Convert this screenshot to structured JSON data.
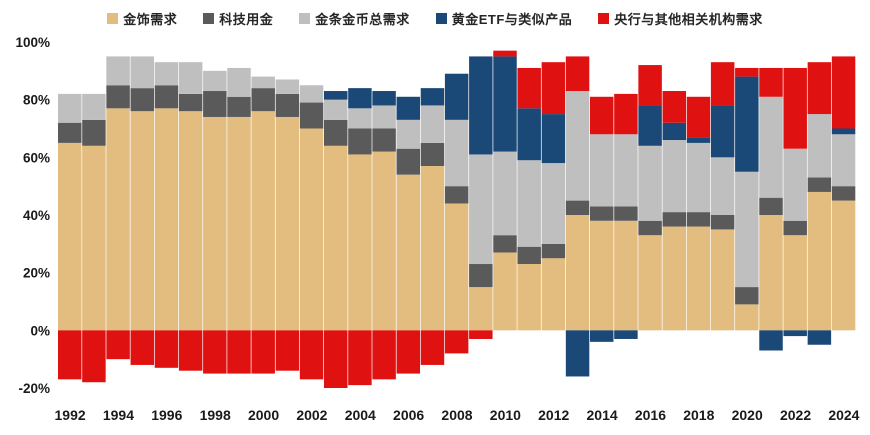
{
  "chart_data": {
    "type": "bar",
    "stacked": true,
    "unit": "%",
    "title": "",
    "xlabel": "",
    "ylabel": "",
    "ylim": [
      -20,
      100
    ],
    "grid": false,
    "legend_position": "top",
    "x_tick_step": 2,
    "x": [
      1992,
      1993,
      1994,
      1995,
      1996,
      1997,
      1998,
      1999,
      2000,
      2001,
      2002,
      2003,
      2004,
      2005,
      2006,
      2007,
      2008,
      2009,
      2010,
      2011,
      2012,
      2013,
      2014,
      2015,
      2016,
      2017,
      2018,
      2019,
      2020,
      2021,
      2022,
      2023,
      2024
    ],
    "y_ticks": [
      {
        "value": 100,
        "label": "100%"
      },
      {
        "value": 80,
        "label": "80%"
      },
      {
        "value": 60,
        "label": "60%"
      },
      {
        "value": 40,
        "label": "40%"
      },
      {
        "value": 20,
        "label": "20%"
      },
      {
        "value": 0,
        "label": "0%"
      },
      {
        "value": -20,
        "label": "-20%"
      }
    ],
    "series": [
      {
        "key": "jewelry",
        "name": "金饰需求",
        "color": "#e3bd7f",
        "values": [
          65,
          64,
          77,
          76,
          77,
          76,
          74,
          74,
          76,
          74,
          70,
          64,
          61,
          62,
          54,
          57,
          44,
          15,
          27,
          23,
          25,
          40,
          38,
          38,
          33,
          36,
          36,
          35,
          9,
          40,
          33,
          48,
          45
        ]
      },
      {
        "key": "technology",
        "name": "科技用金",
        "color": "#5a5a5a",
        "values": [
          7,
          9,
          8,
          8,
          8,
          6,
          9,
          7,
          8,
          8,
          9,
          9,
          9,
          8,
          9,
          8,
          6,
          8,
          6,
          6,
          5,
          5,
          5,
          5,
          5,
          5,
          5,
          5,
          6,
          6,
          5,
          5,
          5
        ]
      },
      {
        "key": "bar-coin",
        "name": "金条金币总需求",
        "color": "#c0bfbf",
        "values": [
          10,
          9,
          10,
          11,
          8,
          11,
          7,
          10,
          4,
          5,
          6,
          7,
          7,
          8,
          10,
          13,
          23,
          38,
          29,
          30,
          28,
          38,
          25,
          25,
          26,
          25,
          24,
          20,
          40,
          35,
          25,
          22,
          18
        ]
      },
      {
        "key": "etf",
        "name": "黄金ETF与类似产品",
        "color": "#1b4977",
        "values": [
          0,
          0,
          0,
          0,
          0,
          0,
          0,
          0,
          0,
          0,
          0,
          3,
          7,
          5,
          8,
          6,
          16,
          34,
          33,
          18,
          17,
          -16,
          -4,
          -3,
          14,
          6,
          2,
          18,
          33,
          -7,
          -2,
          -5,
          2
        ]
      },
      {
        "key": "central-bank",
        "name": "央行与其他相关机构需求",
        "color": "#e01111",
        "values": [
          -17,
          -18,
          -10,
          -12,
          -13,
          -14,
          -15,
          -15,
          -15,
          -14,
          -17,
          -20,
          -19,
          -17,
          -15,
          -12,
          -8,
          -3,
          2,
          14,
          18,
          12,
          13,
          14,
          14,
          11,
          14,
          15,
          3,
          10,
          28,
          18,
          25
        ]
      }
    ]
  }
}
